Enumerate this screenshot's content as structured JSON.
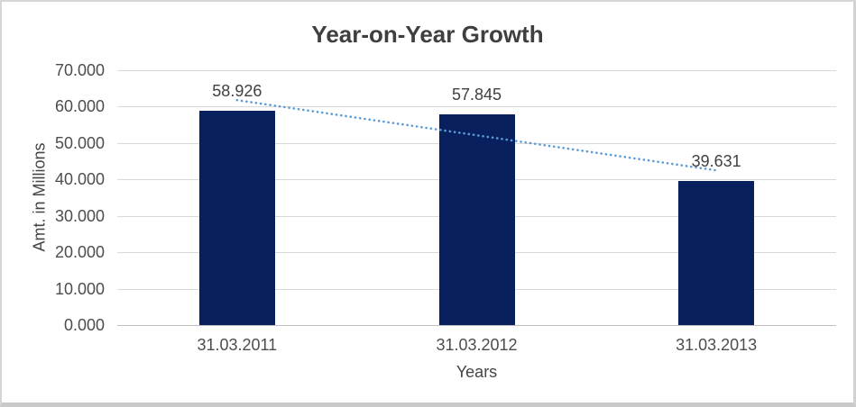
{
  "chart_data": {
    "type": "bar",
    "title": "Year-on-Year Growth",
    "xlabel": "Years",
    "ylabel": "Amt. in Millions",
    "categories": [
      "31.03.2011",
      "31.03.2012",
      "31.03.2013"
    ],
    "values": [
      58.926,
      57.845,
      39.631
    ],
    "value_labels": [
      "58.926",
      "57.845",
      "39.631"
    ],
    "y_ticks": [
      "0.000",
      "10.000",
      "20.000",
      "30.000",
      "40.000",
      "50.000",
      "60.000",
      "70.000"
    ],
    "ylim": [
      0,
      70
    ],
    "grid": true,
    "legend": "none",
    "trendline": {
      "type": "linear",
      "style": "dotted"
    },
    "colors": {
      "bar": "#08215e",
      "trendline": "#5b9bd5",
      "gridline": "#d9d9d9",
      "axis_line": "#bfbfbf",
      "title_text": "#3f3f3f",
      "tick_text": "#4d4d4d"
    }
  }
}
